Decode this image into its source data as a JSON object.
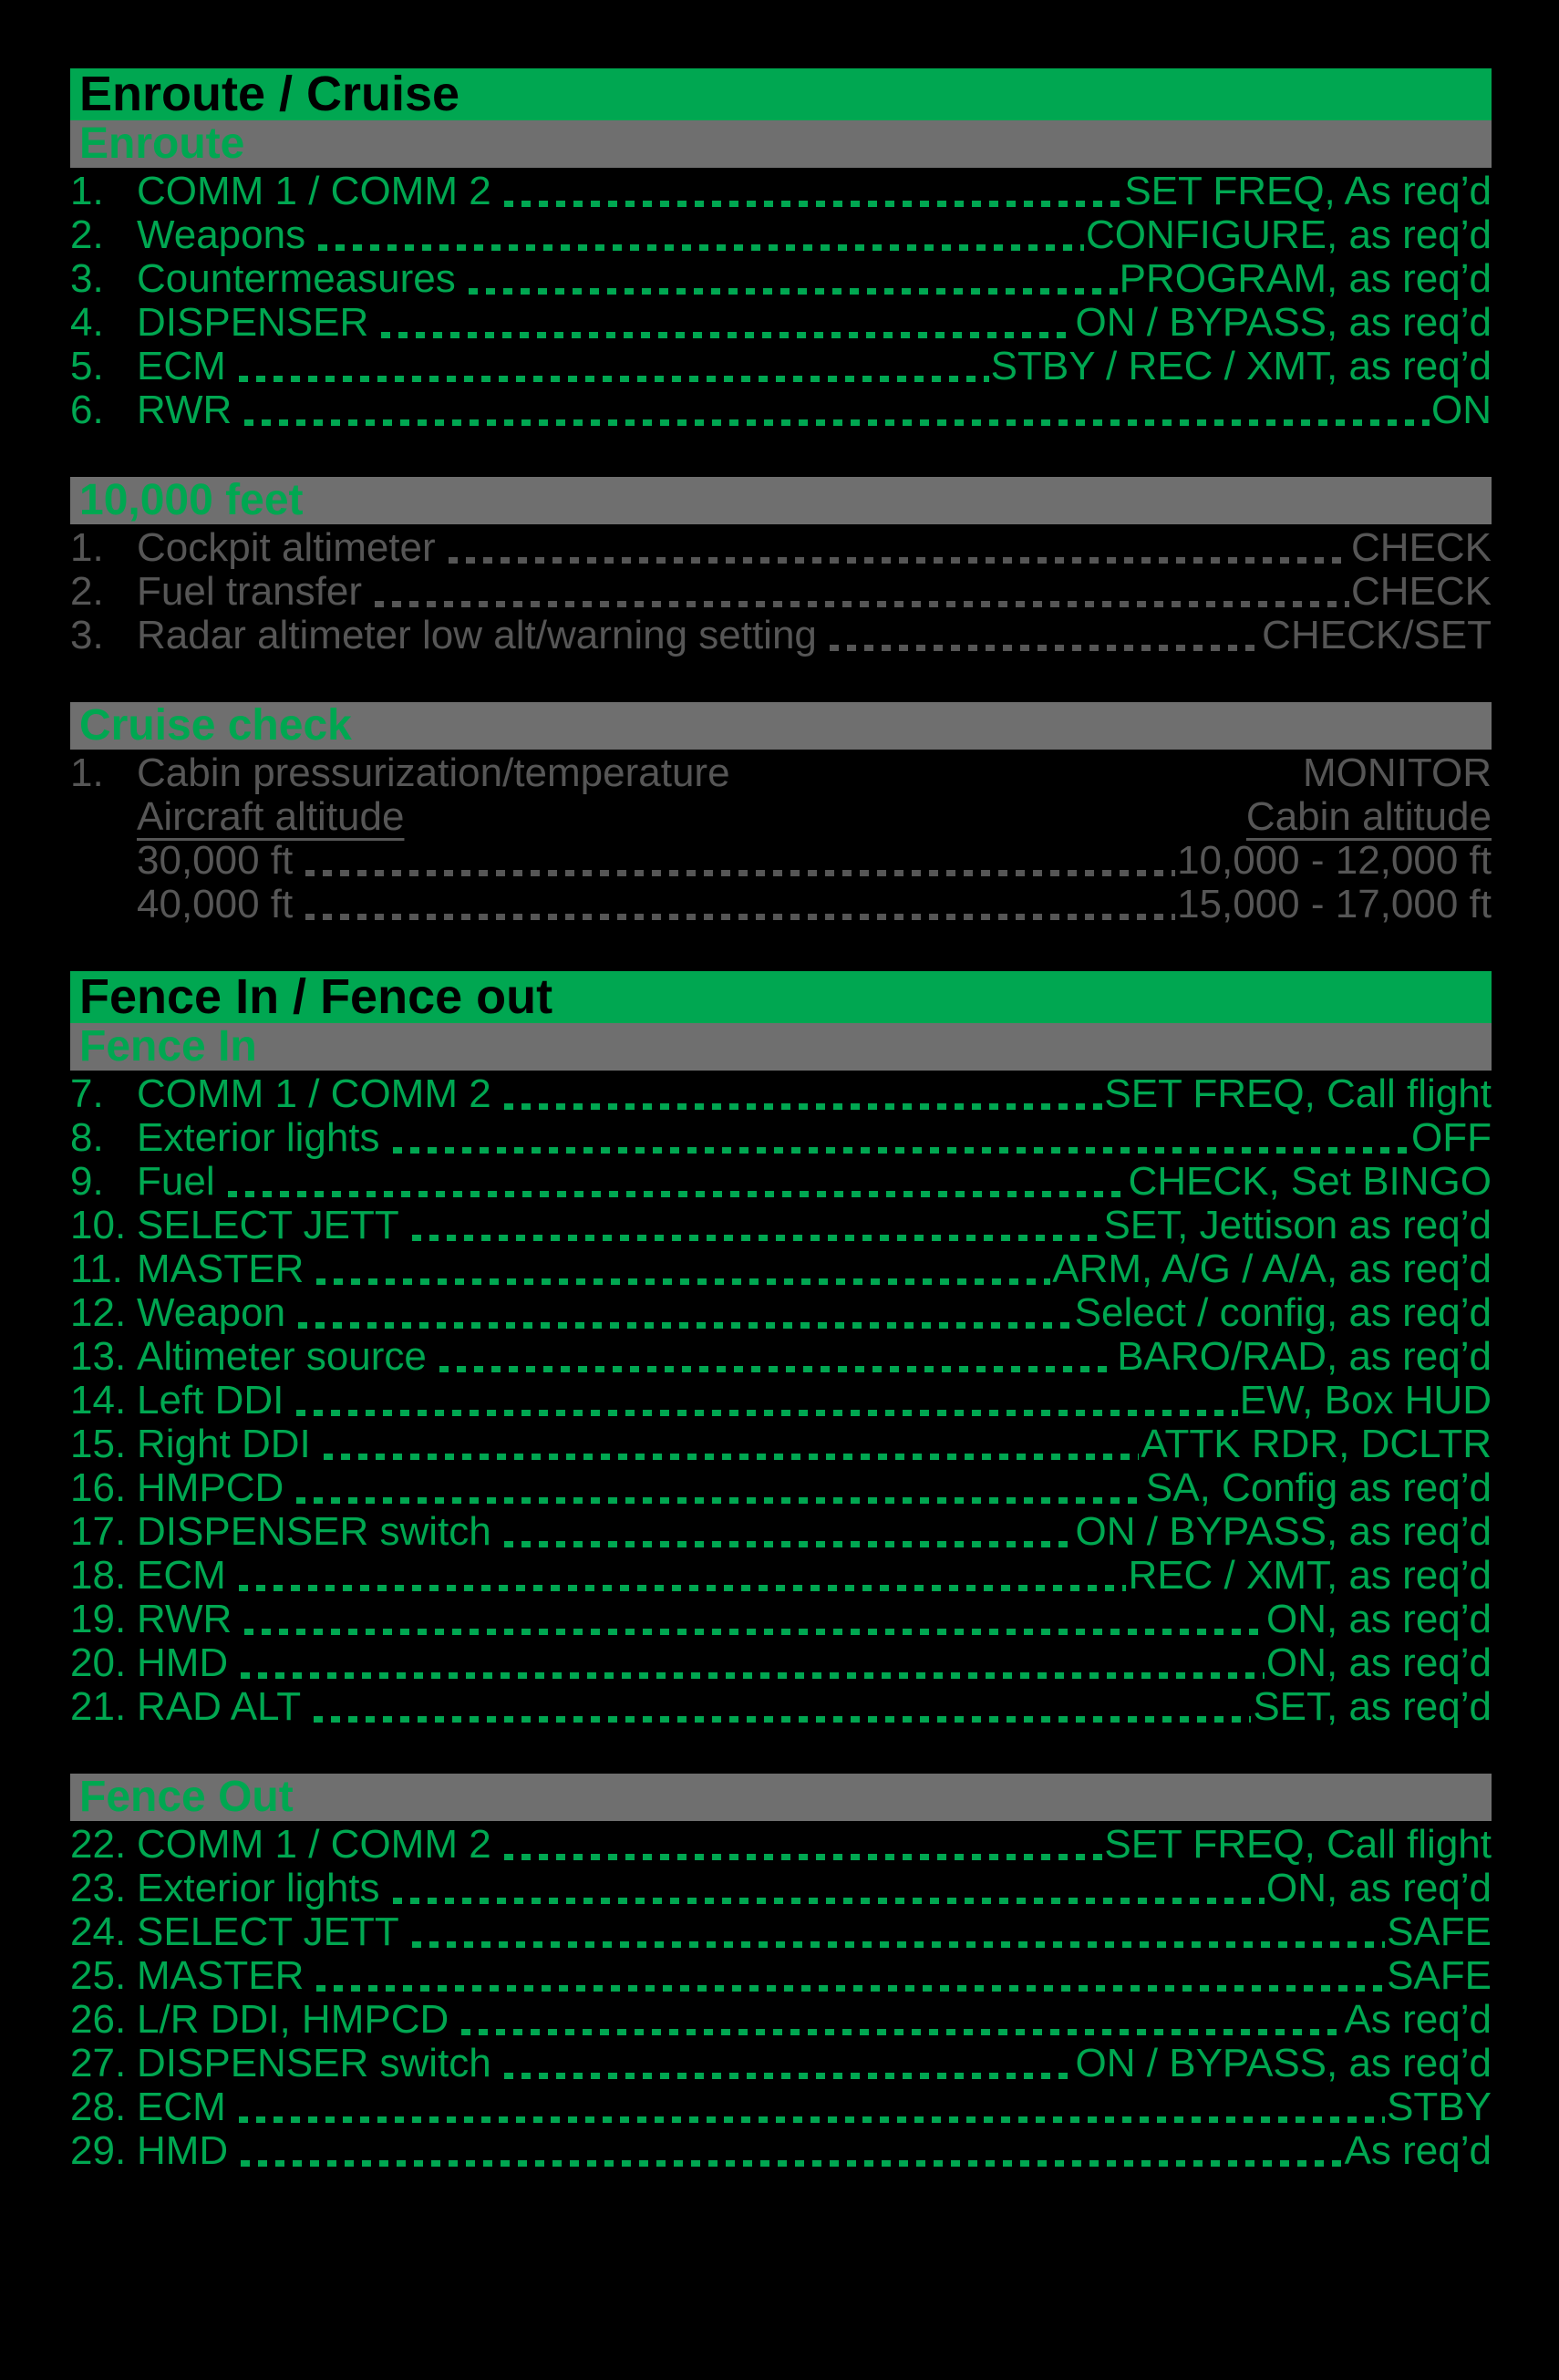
{
  "colors": {
    "accent_green": "#00a751",
    "band_grey": "#6f6f6f",
    "dim_grey_text": "#565656",
    "background": "#000000",
    "banner_text": "#000000"
  },
  "sections": [
    {
      "title": "Enroute / Cruise",
      "subsections": [
        {
          "header": "Enroute",
          "tone": "green",
          "items": [
            {
              "num": "1.",
              "label": "COMM 1 / COMM 2",
              "value": "SET FREQ, As req’d",
              "dots": true
            },
            {
              "num": "2.",
              "label": "Weapons",
              "value": "CONFIGURE, as req’d",
              "dots": true
            },
            {
              "num": "3.",
              "label": "Countermeasures",
              "value": "PROGRAM, as req’d",
              "dots": true
            },
            {
              "num": "4.",
              "label": "DISPENSER",
              "value": "ON / BYPASS, as req’d",
              "dots": true
            },
            {
              "num": "5.",
              "label": "ECM",
              "value": "STBY / REC / XMT, as req’d",
              "dots": true
            },
            {
              "num": "6.",
              "label": "RWR",
              "value": "ON",
              "dots": true
            }
          ]
        },
        {
          "header": "10,000 feet",
          "tone": "grey",
          "items": [
            {
              "num": "1.",
              "label": "Cockpit altimeter",
              "value": "CHECK",
              "dots": true
            },
            {
              "num": "2.",
              "label": "Fuel transfer",
              "value": "CHECK",
              "dots": true
            },
            {
              "num": "3.",
              "label": "Radar altimeter low alt/warning setting",
              "value": "CHECK/SET",
              "dots": true
            }
          ]
        },
        {
          "header": "Cruise check",
          "tone": "grey",
          "items": [
            {
              "num": "1.",
              "label": "Cabin pressurization/temperature",
              "value": "MONITOR",
              "dots": false
            },
            {
              "num": "",
              "label": "Aircraft altitude",
              "value": "Cabin altitude",
              "dots": false,
              "underline": true
            },
            {
              "num": "",
              "label": "30,000 ft",
              "value": "10,000 - 12,000 ft",
              "dots": true
            },
            {
              "num": "",
              "label": "40,000 ft",
              "value": "15,000 - 17,000 ft",
              "dots": true
            }
          ]
        }
      ]
    },
    {
      "title": "Fence In / Fence out",
      "subsections": [
        {
          "header": "Fence In",
          "tone": "green",
          "items": [
            {
              "num": "7.",
              "label": "COMM 1 / COMM 2",
              "value": "SET FREQ, Call flight",
              "dots": true
            },
            {
              "num": "8.",
              "label": "Exterior lights",
              "value": "OFF",
              "dots": true
            },
            {
              "num": "9.",
              "label": "Fuel",
              "value": "CHECK, Set BINGO",
              "dots": true
            },
            {
              "num": "10.",
              "label": "SELECT JETT",
              "value": "SET, Jettison as req’d",
              "dots": true
            },
            {
              "num": "11.",
              "label": "MASTER",
              "value": "ARM, A/G / A/A, as req’d",
              "dots": true
            },
            {
              "num": "12.",
              "label": "Weapon",
              "value": "Select / config, as req’d",
              "dots": true
            },
            {
              "num": "13.",
              "label": "Altimeter source",
              "value": "BARO/RAD, as req’d",
              "dots": true
            },
            {
              "num": "14.",
              "label": "Left DDI",
              "value": "EW, Box HUD",
              "dots": true
            },
            {
              "num": "15.",
              "label": "Right DDI",
              "value": "ATTK RDR, DCLTR",
              "dots": true
            },
            {
              "num": "16.",
              "label": "HMPCD",
              "value": "SA, Config as req’d",
              "dots": true
            },
            {
              "num": "17.",
              "label": "DISPENSER switch",
              "value": "ON / BYPASS, as req’d",
              "dots": true
            },
            {
              "num": "18.",
              "label": "ECM",
              "value": "REC / XMT, as req’d",
              "dots": true
            },
            {
              "num": "19.",
              "label": "RWR",
              "value": "ON, as req’d",
              "dots": true
            },
            {
              "num": "20.",
              "label": "HMD",
              "value": "ON, as req’d",
              "dots": true
            },
            {
              "num": "21.",
              "label": "RAD ALT",
              "value": "SET, as req’d",
              "dots": true
            }
          ]
        },
        {
          "header": "Fence Out",
          "tone": "green",
          "items": [
            {
              "num": "22.",
              "label": "COMM 1 / COMM 2",
              "value": "SET FREQ, Call flight",
              "dots": true
            },
            {
              "num": "23.",
              "label": "Exterior lights",
              "value": "ON, as req’d",
              "dots": true
            },
            {
              "num": "24.",
              "label": "SELECT JETT",
              "value": "SAFE",
              "dots": true
            },
            {
              "num": "25.",
              "label": "MASTER",
              "value": "SAFE",
              "dots": true
            },
            {
              "num": "26.",
              "label": "L/R DDI, HMPCD",
              "value": "As req’d",
              "dots": true
            },
            {
              "num": "27.",
              "label": "DISPENSER switch",
              "value": "ON / BYPASS, as req’d",
              "dots": true
            },
            {
              "num": "28.",
              "label": "ECM",
              "value": "STBY",
              "dots": true
            },
            {
              "num": "29.",
              "label": "HMD",
              "value": "As req’d",
              "dots": true
            }
          ]
        }
      ]
    }
  ]
}
